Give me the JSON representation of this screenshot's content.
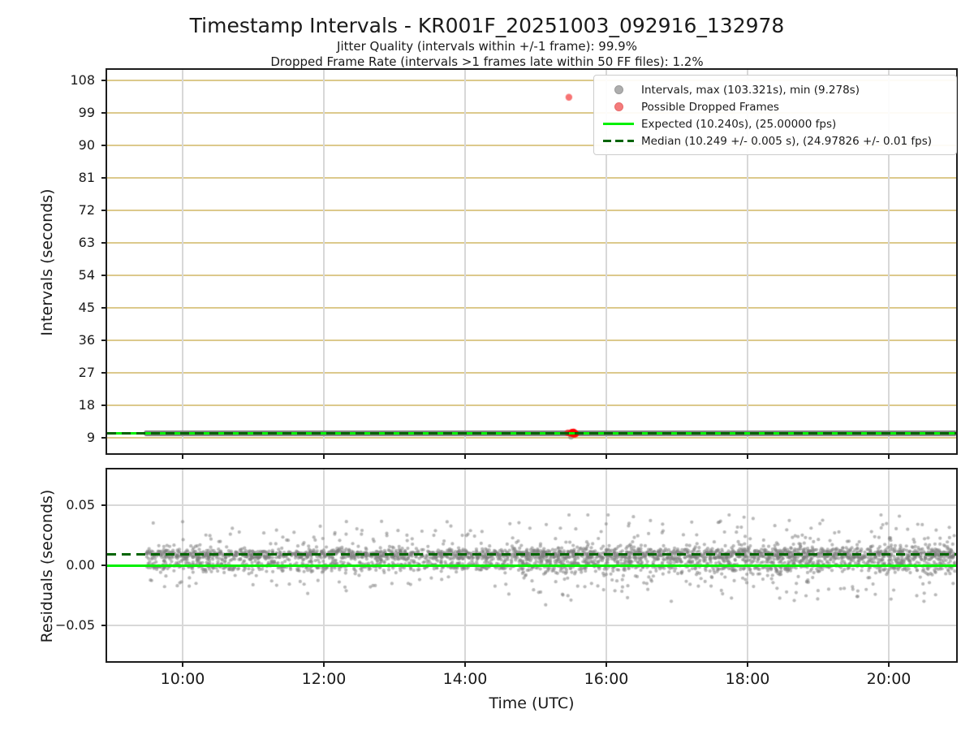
{
  "figure": {
    "title": "Timestamp Intervals - KR001F_20251003_092916_132978",
    "subtitle1": "Jitter Quality (intervals within +/-1 frame): 99.9%",
    "subtitle2": "Dropped Frame Rate (intervals >1 frames late within 50 FF files): 1.2%"
  },
  "legend": {
    "items": [
      {
        "marker": "gray-dot",
        "label": "Intervals, max (103.321s), min (9.278s)"
      },
      {
        "marker": "red-dot",
        "label": "Possible Dropped Frames"
      },
      {
        "marker": "solid-green-line",
        "label": "Expected (10.240s), (25.00000 fps)"
      },
      {
        "marker": "dashed-darkgreen-line",
        "label": "Median (10.249 +/- 0.005 s), (24.97826 +/- 0.01 fps)"
      }
    ]
  },
  "chart_data": [
    {
      "type": "scatter",
      "name": "intervals",
      "ylabel": "Intervals (seconds)",
      "xlabel": "",
      "x_axis": {
        "tick_labels": [
          "10:00",
          "12:00",
          "14:00",
          "16:00",
          "18:00",
          "20:00"
        ],
        "tick_hours": [
          10,
          12,
          14,
          16,
          18,
          20
        ],
        "range_hours": [
          8.93,
          20.95
        ],
        "show_tick_labels": false
      },
      "y_axis": {
        "tick_values": [
          9,
          18,
          27,
          36,
          45,
          54,
          63,
          72,
          81,
          90,
          99,
          108
        ],
        "range": [
          4.7,
          110.9
        ]
      },
      "grid": {
        "horizontal_color": "#dcc98c",
        "vertical_color": "#d8d8d8"
      },
      "stats": {
        "max_s": 103.321,
        "min_s": 9.278,
        "expected_s": 10.24,
        "expected_fps": 25.0,
        "median_s": 10.249,
        "median_err_s": 0.005,
        "median_fps": 24.97826,
        "median_fps_err": 0.01,
        "jitter_quality_pct": 99.9,
        "dropped_frame_rate_pct": 1.2
      },
      "lines": [
        {
          "name": "expected",
          "value": 10.24,
          "style": "solid",
          "color": "#00f000",
          "width": 3
        },
        {
          "name": "median",
          "value": 10.249,
          "style": "dashed",
          "color": "#006400",
          "width": 3.5
        }
      ],
      "series": {
        "band": {
          "t_start": 9.487,
          "t_end": 20.94,
          "count": 3800,
          "center": 10.249,
          "color": "rgba(128,128,128,0.5)",
          "radius": 3.4
        },
        "dropped_cluster": {
          "t_start": 15.45,
          "t_end": 15.57,
          "count": 16,
          "value": 10.25,
          "color": "rgba(255,0,0,0.6)",
          "radius": 4.2
        },
        "max_point": {
          "t": 15.47,
          "value": 103.321,
          "color": "rgba(244,70,70,0.75)",
          "radius": 4.2
        },
        "min_point": {
          "t": 15.5,
          "value": 9.278,
          "color": "rgba(128,128,128,0.6)",
          "radius": 3.4
        }
      }
    },
    {
      "type": "scatter",
      "name": "residuals",
      "ylabel": "Residuals (seconds)",
      "xlabel": "Time (UTC)",
      "x_axis": {
        "tick_labels": [
          "10:00",
          "12:00",
          "14:00",
          "16:00",
          "18:00",
          "20:00"
        ],
        "tick_hours": [
          10,
          12,
          14,
          16,
          18,
          20
        ],
        "range_hours": [
          8.93,
          20.95
        ],
        "show_tick_labels": true
      },
      "y_axis": {
        "tick_values": [
          0.05,
          0.0,
          -0.05
        ],
        "tick_labels": [
          "0.05",
          "0.00",
          "−0.05"
        ],
        "range": [
          -0.08,
          0.0806
        ]
      },
      "grid": {
        "horizontal_color": "#d8d8d8",
        "vertical_color": "#d8d8d8"
      },
      "lines": [
        {
          "name": "expected",
          "value": 0.0,
          "style": "solid",
          "color": "#00f000",
          "width": 3
        },
        {
          "name": "median",
          "value": 0.009,
          "style": "dashed",
          "color": "#006400",
          "width": 3.5
        }
      ],
      "series": {
        "noise": {
          "t_start": 9.487,
          "t_end": 20.94,
          "count": 3800,
          "seed": 42,
          "color": "rgba(128,128,128,0.55)",
          "radius": 2.1,
          "mixture": [
            {
              "weight": 0.55,
              "mean": 0.009,
              "sigma": 0.0022
            },
            {
              "weight": 0.25,
              "mean": -0.0005,
              "sigma": 0.0022
            },
            {
              "weight": 0.18,
              "mean": 0.006,
              "sigma": 0.011
            },
            {
              "weight": 0.02,
              "uniform": [
                -0.028,
                0.038
              ]
            }
          ],
          "late_t_threshold": 14.5,
          "late_sigma_scale": 1.35,
          "late_fraction": 0.6,
          "clip": [
            -0.033,
            0.042
          ]
        },
        "outliers": [
          [
            11.15,
            0.027
          ],
          [
            13.05,
            0.029
          ],
          [
            14.62,
            -0.024
          ],
          [
            15.15,
            0.034
          ],
          [
            15.35,
            0.031
          ],
          [
            15.5,
            -0.029
          ],
          [
            16.3,
            -0.027
          ],
          [
            16.92,
            -0.03
          ],
          [
            17.6,
            0.036
          ],
          [
            18.9,
            0.031
          ],
          [
            19.55,
            -0.026
          ],
          [
            20.15,
            0.041
          ]
        ]
      }
    }
  ]
}
